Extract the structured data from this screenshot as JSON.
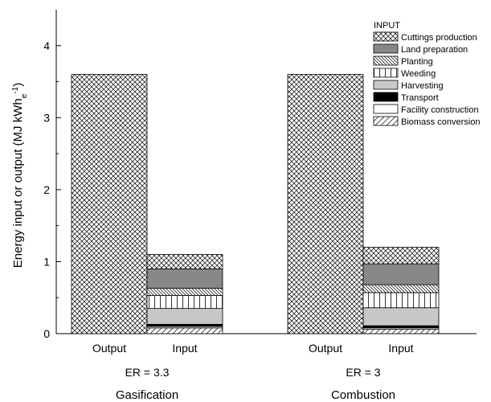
{
  "chart_data": {
    "type": "bar",
    "stacked": true,
    "ylabel": "Energy input or output (MJ kWh",
    "ylabel_sub": "e",
    "ylabel_sup": "-1",
    "ylabel_close": ")",
    "ylim": [
      0,
      4.5
    ],
    "yticks": [
      0,
      1,
      2,
      3,
      4
    ],
    "groups": [
      {
        "name": "Gasification",
        "er_label": "ER = 3.3",
        "bars": [
          {
            "label": "Output",
            "segments": [
              {
                "series": "Output",
                "value": 3.6
              }
            ]
          },
          {
            "label": "Input",
            "segments": [
              {
                "series": "Biomass conversion",
                "value": 0.08
              },
              {
                "series": "Facility construction",
                "value": 0.02
              },
              {
                "series": "Transport",
                "value": 0.03
              },
              {
                "series": "Harvesting",
                "value": 0.22
              },
              {
                "series": "Weeding",
                "value": 0.18
              },
              {
                "series": "Planting",
                "value": 0.1
              },
              {
                "series": "Land preparation",
                "value": 0.27
              },
              {
                "series": "Cuttings production",
                "value": 0.2
              }
            ]
          }
        ]
      },
      {
        "name": "Combustion",
        "er_label": "ER = 3",
        "bars": [
          {
            "label": "Output",
            "segments": [
              {
                "series": "Output",
                "value": 3.6
              }
            ]
          },
          {
            "label": "Input",
            "segments": [
              {
                "series": "Biomass conversion",
                "value": 0.06
              },
              {
                "series": "Facility construction",
                "value": 0.02
              },
              {
                "series": "Transport",
                "value": 0.03
              },
              {
                "series": "Harvesting",
                "value": 0.25
              },
              {
                "series": "Weeding",
                "value": 0.21
              },
              {
                "series": "Planting",
                "value": 0.11
              },
              {
                "series": "Land preparation",
                "value": 0.29
              },
              {
                "series": "Cuttings production",
                "value": 0.23
              }
            ]
          }
        ]
      }
    ],
    "legend": {
      "title": "INPUT",
      "placement": "top-right",
      "items": [
        {
          "name": "Cuttings production",
          "pattern": "crosshatch"
        },
        {
          "name": "Land preparation",
          "pattern": "darkgray"
        },
        {
          "name": "Planting",
          "pattern": "backdiag"
        },
        {
          "name": "Weeding",
          "pattern": "vertical"
        },
        {
          "name": "Harvesting",
          "pattern": "lightgray"
        },
        {
          "name": "Transport",
          "pattern": "black"
        },
        {
          "name": "Facility construction",
          "pattern": "white"
        },
        {
          "name": "Biomass conversion",
          "pattern": "fwddiag"
        }
      ]
    },
    "colors": {
      "darkgray": "#888888",
      "lightgray": "#c8c8c8",
      "black": "#000000",
      "white": "#ffffff",
      "stroke": "#000000"
    }
  }
}
